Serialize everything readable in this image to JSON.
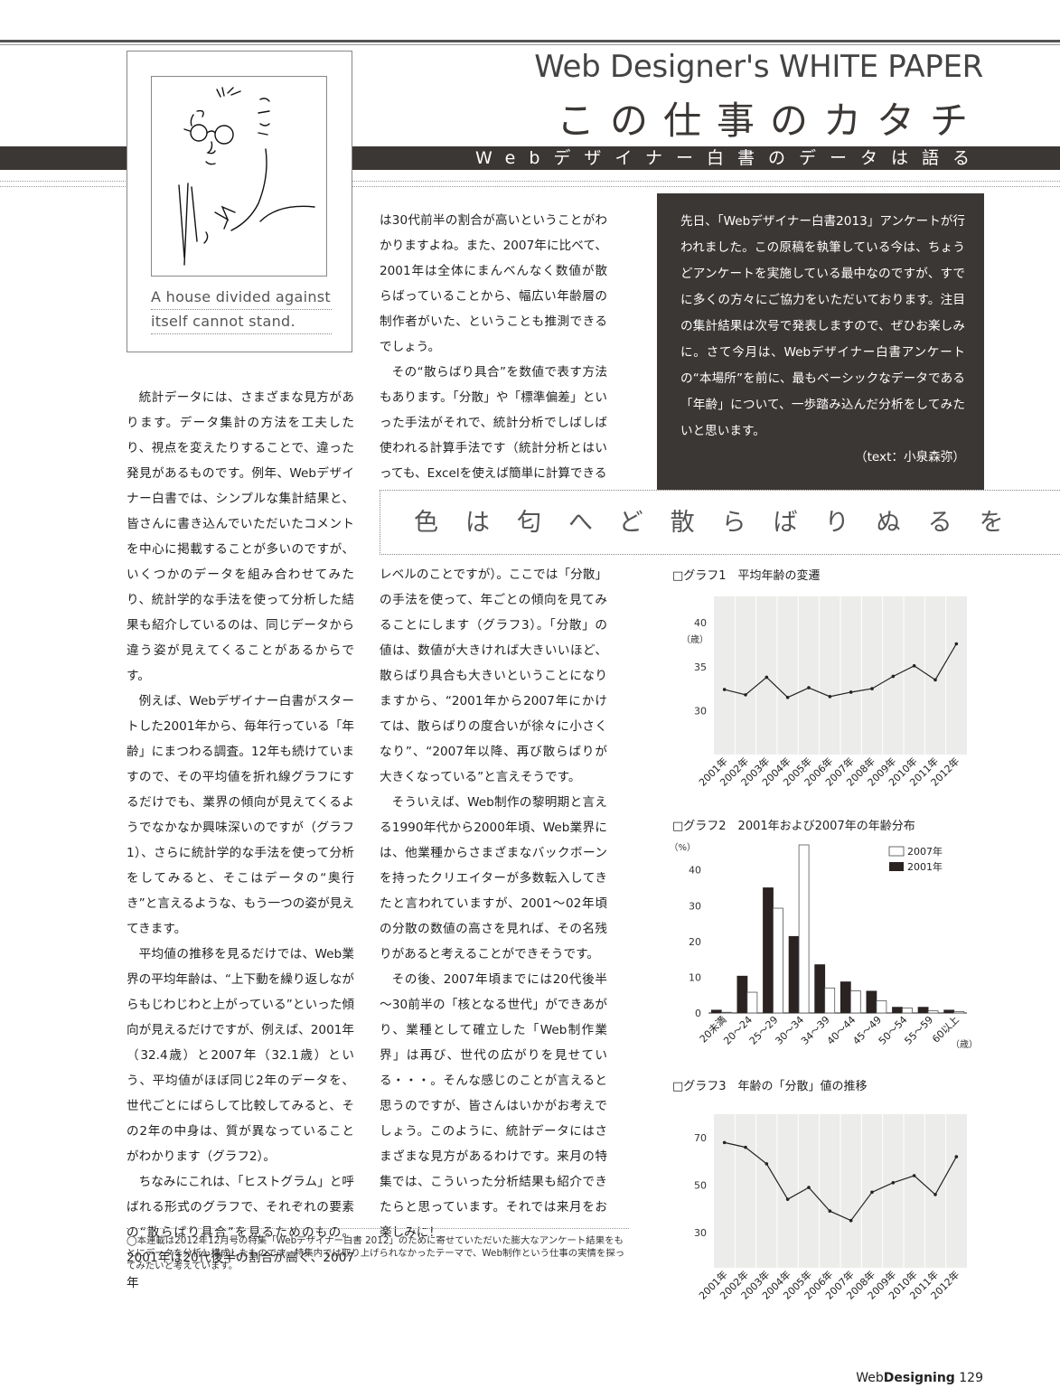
{
  "header": {
    "series": "Web Designer's WHITE PAPER",
    "title": "この仕事のカタチ",
    "subtitle": "Webデザイナー白書のデータは語る"
  },
  "portrait": {
    "quote_line1": "A house divided against",
    "quote_line2": "itself cannot stand."
  },
  "intro": {
    "text": "先日、「Webデザイナー白書2013」アンケートが行われました。この原稿を執筆している今は、ちょうどアンケートを実施している最中なのですが、すでに多くの方々にご協力をいただいております。注目の集計結果は次号で発表しますので、ぜひお楽しみに。さて今月は、Webデザイナー白書アンケートの“本場所”を前に、最もベーシックなデータである「年齢」について、一歩踏み込んだ分析をしてみたいと思います。",
    "credit": "（text：小泉森弥）"
  },
  "poem": "色は匂へど散らばりぬるを",
  "body": {
    "col1_p1": "統計データには、さまざまな見方があります。データ集計の方法を工夫したり、視点を変えたりすることで、違った発見があるものです。例年、Webデザイナー白書では、シンプルな集計結果と、皆さんに書き込んでいただいたコメントを中心に掲載することが多いのですが、いくつかのデータを組み合わせてみたり、統計学的な手法を使って分析した結果も紹介しているのは、同じデータから違う姿が見えてくることがあるからです。",
    "col1_p2": "例えば、Webデザイナー白書がスタートした2001年から、毎年行っている「年齢」にまつわる調査。12年も続けていますので、その平均値を折れ線グラフにするだけでも、業界の傾向が見えてくるようでなかなか興味深いのですが（グラフ1）、さらに統計学的な手法を使って分析をしてみると、そこはデータの“奥行き”と言えるような、もう一つの姿が見えてきます。",
    "col1_p3": "平均値の推移を見るだけでは、Web業界の平均年齢は、“上下動を繰り返しながらもじわじわと上がっている”といった傾向が見えるだけですが、例えば、2001年（32.4歳）と2007年（32.1歳）という、平均値がほぼ同じ2年のデータを、世代ごとにばらして比較してみると、その2年の中身は、質が異なっていることがわかります（グラフ2）。",
    "col1_p4": "ちなみにこれは、「ヒストグラム」と呼ばれる形式のグラフで、それぞれの要素の“散らばり具合”を見るためのもの。2001年は20代後半の割合が高く、2007年",
    "col2a_p1": "は30代前半の割合が高いということがわかりますよね。また、2007年に比べて、2001年は全体にまんべんなく数値が散らばっていることから、幅広い年齢層の制作者がいた、ということも推測できるでしょう。",
    "col2a_p2": "その“散らばり具合”を数値で表す方法もあります。「分散」や「標準偏差」といった手法がそれで、統計分析でしばしば使われる計算手法です（統計分析とはいっても、Excelを使えば簡単に計算できる",
    "col2b_p1": "レベルのことですが）。ここでは「分散」の手法を使って、年ごとの傾向を見てみることにします（グラフ3）。「分散」の値は、数値が大きければ大きいいほど、散らばり具合も大きいということになりますから、“2001年から2007年にかけては、散らばりの度合いが徐々に小さくなり”、“2007年以降、再び散らばりが大きくなっている”と言えそうです。",
    "col2b_p2": "そういえば、Web制作の黎明期と言える1990年代から2000年頃、Web業界には、他業種からさまざまなバックボーンを持ったクリエイターが多数転入してきたと言われていますが、2001～02年頃の分散の数値の高さを見れば、その名残りがあると考えることができそうです。",
    "col2b_p3": "その後、2007年頃までには20代後半～30前半の「核となる世代」ができあがり、業種として確立した「Web制作業界」は再び、世代の広がりを見せている・・・。そんな感じのことが言えると思うのですが、皆さんはいかがお考えでしょう。このように、統計データにはさまざまな見方があるわけです。来月の特集では、こういった分析結果も紹介できたらと思っています。それでは来月をお楽しみに！"
  },
  "footnote": "◯本連載は2012年12月号の特集「Webデザイナー白書 2012」のために寄せていただいた膨大なアンケート結果をもとにデータを分析し構成したものです。特集内では取り上げられなかったテーマで、Web制作という仕事の実情を探ってみたいと考えています。",
  "folio": {
    "brand_web": "Web",
    "brand_designing": "Designing",
    "page": "129"
  },
  "chart_data": [
    {
      "type": "line",
      "title": "□グラフ1　平均年齢の変遷",
      "ylabel": "（歳）",
      "categories": [
        "2001年",
        "2002年",
        "2003年",
        "2004年",
        "2005年",
        "2006年",
        "2007年",
        "2008年",
        "2009年",
        "2010年",
        "2011年",
        "2012年"
      ],
      "values": [
        32.4,
        31.8,
        33.8,
        31.5,
        32.6,
        31.6,
        32.1,
        32.5,
        33.9,
        35.1,
        33.5,
        37.6
      ],
      "ylim": [
        25,
        43
      ],
      "yticks": [
        30,
        35,
        40
      ]
    },
    {
      "type": "bar",
      "title": "□グラフ2　2001年および2007年の年齢分布",
      "ylabel": "（%）",
      "xunit": "（歳）",
      "categories": [
        "20未満",
        "20～24",
        "25～29",
        "30～34",
        "34～39",
        "40～44",
        "45～49",
        "50～54",
        "55～59",
        "60以上"
      ],
      "series": [
        {
          "name": "2007年",
          "values": [
            0.2,
            5.8,
            29.3,
            47.0,
            7.0,
            6.2,
            3.4,
            1.4,
            0.6,
            0.4
          ],
          "color": "#ffffff"
        },
        {
          "name": "2001年",
          "values": [
            0.8,
            10.3,
            35.0,
            21.4,
            13.5,
            8.7,
            6.1,
            1.6,
            1.6,
            0.8
          ],
          "color": "#2a2322"
        }
      ],
      "legend": "top-right",
      "ylim": [
        0,
        47
      ],
      "yticks": [
        0,
        10,
        20,
        30,
        40
      ]
    },
    {
      "type": "line",
      "title": "□グラフ3　年齢の「分散」値の推移",
      "categories": [
        "2001年",
        "2002年",
        "2003年",
        "2004年",
        "2005年",
        "2006年",
        "2007年",
        "2008年",
        "2009年",
        "2010年",
        "2011年",
        "2012年"
      ],
      "values": [
        68,
        66,
        59,
        44,
        49,
        39,
        35,
        47,
        51,
        54,
        46,
        62
      ],
      "ylim": [
        15,
        80
      ],
      "yticks": [
        30,
        50,
        70
      ]
    }
  ]
}
